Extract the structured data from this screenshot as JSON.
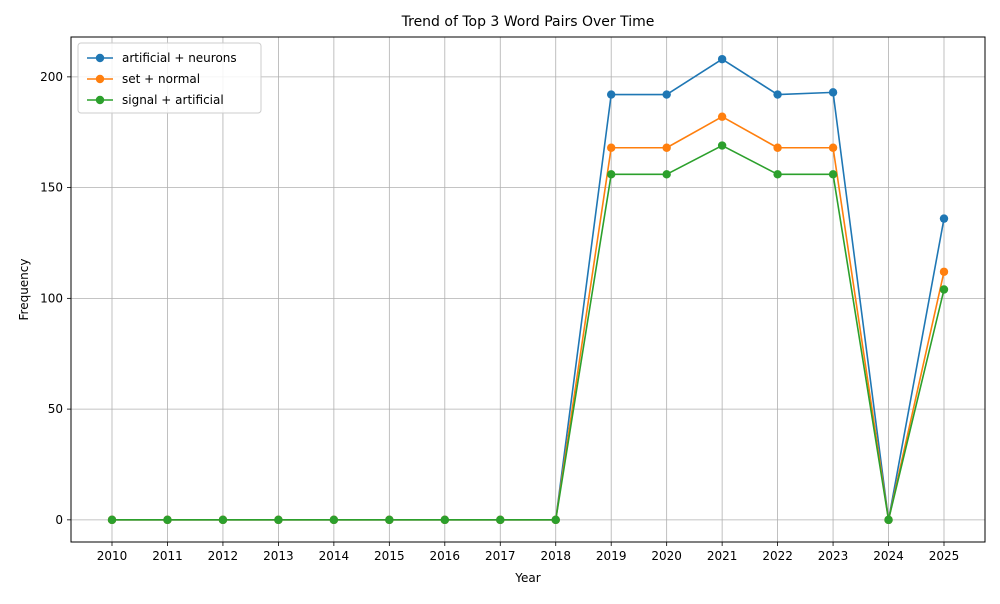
{
  "chart_data": {
    "type": "line",
    "title": "Trend of Top 3 Word Pairs Over Time",
    "xlabel": "Year",
    "ylabel": "Frequency",
    "categories": [
      "2010",
      "2011",
      "2012",
      "2013",
      "2014",
      "2015",
      "2016",
      "2017",
      "2018",
      "2019",
      "2020",
      "2021",
      "2022",
      "2023",
      "2024",
      "2025"
    ],
    "ylim": [
      -10,
      218
    ],
    "yticks": [
      "0",
      "50",
      "100",
      "150",
      "200"
    ],
    "ytick_values": [
      0,
      50,
      100,
      150,
      200
    ],
    "grid": true,
    "legend_position": "upper-left",
    "series": [
      {
        "name": "artificial + neurons",
        "color": "#1f77b4",
        "values": [
          0,
          0,
          0,
          0,
          0,
          0,
          0,
          0,
          0,
          192,
          192,
          208,
          192,
          193,
          0,
          136
        ]
      },
      {
        "name": "set + normal",
        "color": "#ff7f0e",
        "values": [
          0,
          0,
          0,
          0,
          0,
          0,
          0,
          0,
          0,
          168,
          168,
          182,
          168,
          168,
          0,
          112
        ]
      },
      {
        "name": "signal + artificial",
        "color": "#2ca02c",
        "values": [
          0,
          0,
          0,
          0,
          0,
          0,
          0,
          0,
          0,
          156,
          156,
          169,
          156,
          156,
          0,
          104
        ]
      }
    ]
  }
}
